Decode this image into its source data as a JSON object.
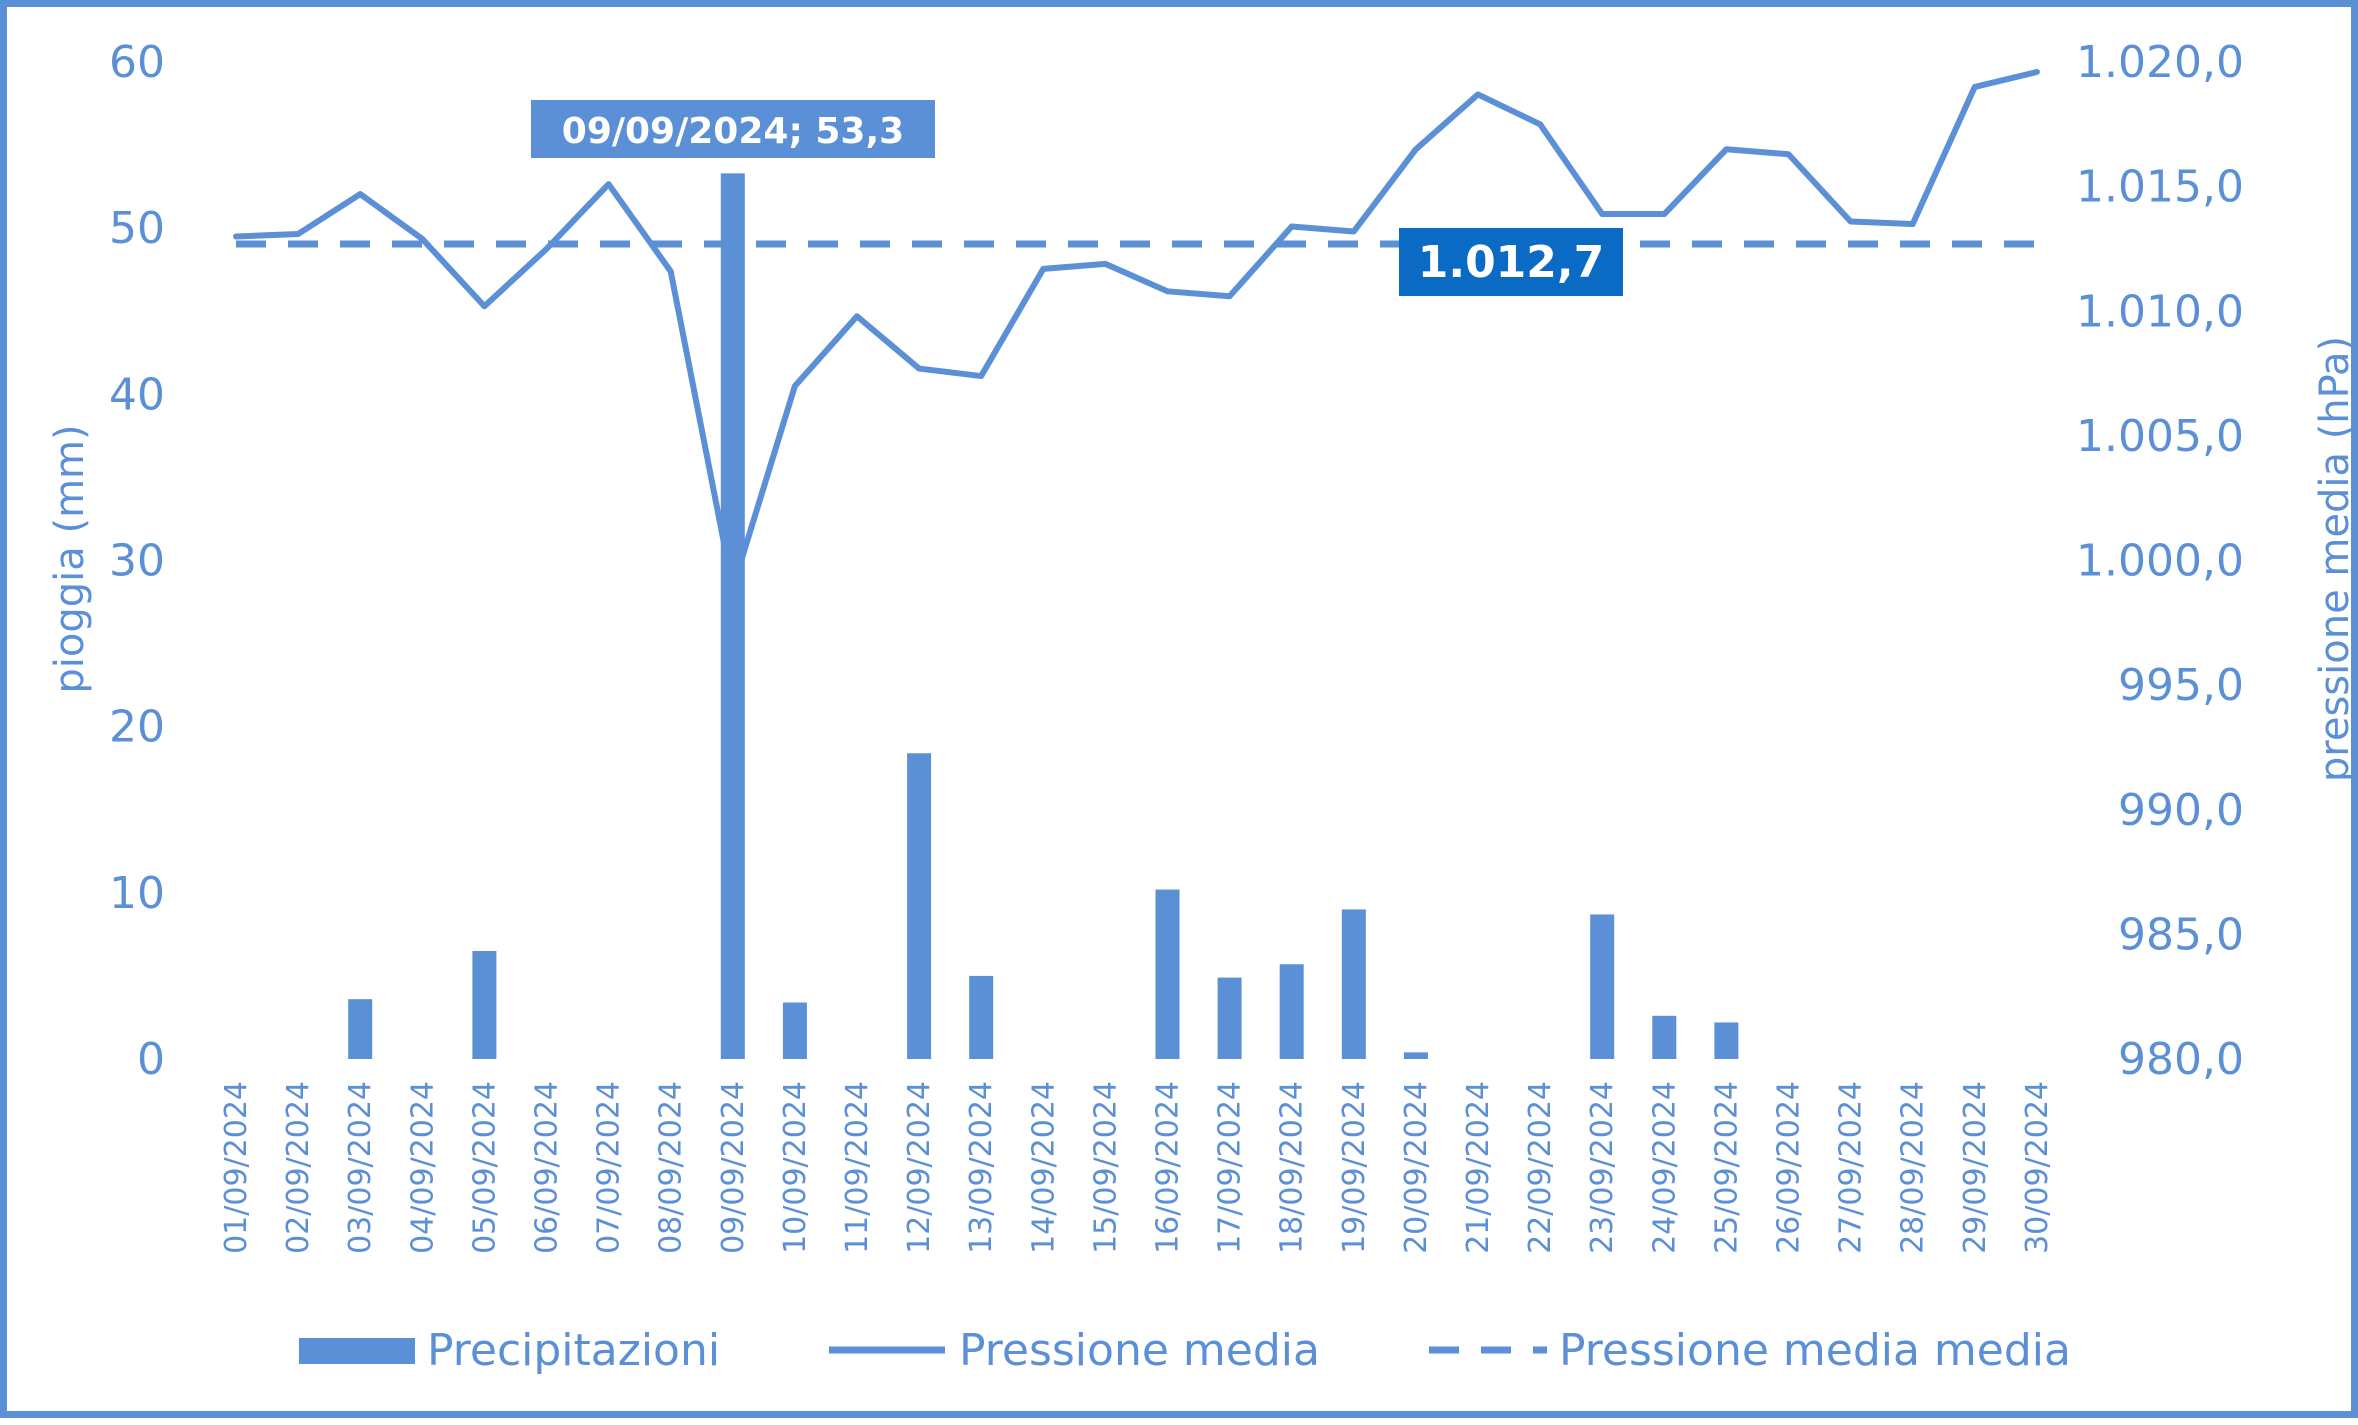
{
  "chart_data": {
    "type": "bar",
    "x": [
      "01/09/2024",
      "02/09/2024",
      "03/09/2024",
      "04/09/2024",
      "05/09/2024",
      "06/09/2024",
      "07/09/2024",
      "08/09/2024",
      "09/09/2024",
      "10/09/2024",
      "11/09/2024",
      "12/09/2024",
      "13/09/2024",
      "14/09/2024",
      "15/09/2024",
      "16/09/2024",
      "17/09/2024",
      "18/09/2024",
      "19/09/2024",
      "20/09/2024",
      "21/09/2024",
      "22/09/2024",
      "23/09/2024",
      "24/09/2024",
      "25/09/2024",
      "26/09/2024",
      "27/09/2024",
      "28/09/2024",
      "29/09/2024",
      "30/09/2024"
    ],
    "series": [
      {
        "name": "Precipitazioni",
        "type": "bar",
        "axis": "left",
        "values": [
          0,
          0,
          3.6,
          0,
          6.5,
          0,
          0,
          0,
          53.3,
          3.4,
          0,
          18.4,
          5.0,
          0,
          0,
          10.2,
          4.9,
          5.7,
          9.0,
          0.4,
          0,
          0,
          8.7,
          2.6,
          2.2,
          0,
          0,
          0,
          0,
          0
        ]
      },
      {
        "name": "Pressione media",
        "type": "line",
        "axis": "right",
        "values": [
          1013.0,
          1013.1,
          1014.7,
          1012.9,
          1010.2,
          1012.5,
          1015.1,
          1011.6,
          998.9,
          1007.0,
          1009.8,
          1007.7,
          1007.4,
          1011.7,
          1011.9,
          1010.8,
          1010.6,
          1013.4,
          1013.2,
          1016.5,
          1018.7,
          1017.5,
          1013.9,
          1013.9,
          1016.5,
          1016.3,
          1013.6,
          1013.5,
          1019.0,
          1019.6
        ]
      },
      {
        "name": "Pressione media media",
        "type": "line-dashed",
        "axis": "right",
        "value": 1012.7
      }
    ],
    "ylabel": "pioggia (mm)",
    "y2label": "pressione media (hPa)",
    "ylim": [
      0,
      60
    ],
    "y2lim": [
      980,
      1020
    ],
    "yticks": [
      "0",
      "10",
      "20",
      "30",
      "40",
      "50",
      "60"
    ],
    "y2ticks": [
      "980,0",
      "985,0",
      "990,0",
      "995,0",
      "1.000,0",
      "1.005,0",
      "1.010,0",
      "1.015,0",
      "1.020,0"
    ],
    "grid": false,
    "legend": "bottom",
    "annotations": [
      {
        "label": "09/09/2024; 53,3",
        "target": "Precipitazioni",
        "x": "09/09/2024",
        "y": 53.3
      },
      {
        "label": "1.012,7",
        "target": "Pressione media media",
        "x": "22/09/2024",
        "y": 1012.7
      }
    ]
  },
  "colors": {
    "series": "#5b8fd6",
    "callout_bar": "#5b8fd6",
    "callout_mean": "#0b6bc4",
    "text": "#5b8fd6"
  }
}
